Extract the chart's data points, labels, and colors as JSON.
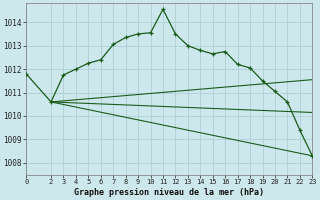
{
  "background_color": "#cde8ed",
  "grid_color": "#aecfd6",
  "line_color": "#1a5c1a",
  "title": "Graphe pression niveau de la mer (hPa)",
  "xlim": [
    0,
    23
  ],
  "ylim": [
    1007.5,
    1014.8
  ],
  "yticks": [
    1008,
    1009,
    1010,
    1011,
    1012,
    1013,
    1014
  ],
  "xticks": [
    0,
    2,
    3,
    4,
    5,
    6,
    7,
    8,
    9,
    10,
    11,
    12,
    13,
    14,
    15,
    16,
    17,
    18,
    19,
    20,
    21,
    22,
    23
  ],
  "line1_x": [
    0,
    2,
    3,
    4,
    5,
    6,
    7,
    8,
    9,
    10,
    11,
    12,
    13,
    14,
    15,
    16,
    17,
    18,
    19,
    20,
    21,
    22,
    23
  ],
  "line1_y": [
    1011.8,
    1010.6,
    1011.75,
    1012.0,
    1012.25,
    1012.4,
    1013.05,
    1013.35,
    1013.5,
    1013.55,
    1014.55,
    1013.5,
    1013.0,
    1012.8,
    1012.65,
    1012.75,
    1012.2,
    1012.05,
    1011.5,
    1011.05,
    1010.6,
    1009.4,
    1008.3
  ],
  "line2_x": [
    2,
    23
  ],
  "line2_y": [
    1010.6,
    1008.3
  ],
  "line3_x": [
    2,
    23
  ],
  "line3_y": [
    1010.6,
    1011.55
  ],
  "line4_x": [
    2,
    23
  ],
  "line4_y": [
    1010.6,
    1010.15
  ]
}
